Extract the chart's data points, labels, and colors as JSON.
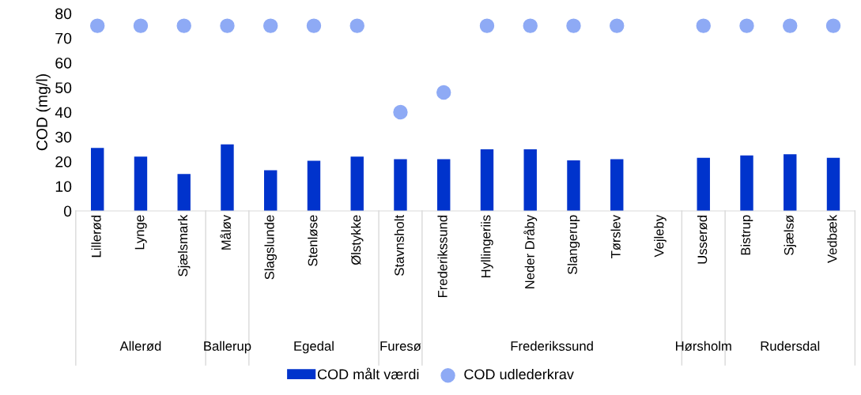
{
  "chart_data": {
    "type": "bar",
    "ylabel": "COD (mg/l)",
    "categories": [
      "Lillerød",
      "Lynge",
      "Sjælsmark",
      "Måløv",
      "Slagslunde",
      "Stenløse",
      "Ølstykke",
      "Stavnsholt",
      "Frederikssund",
      "Hyllingeriis",
      "Neder Dråby",
      "Slangerup",
      "Tørslev",
      "Vejleby",
      "Usserød",
      "Bistrup",
      "Sjælsø",
      "Vedbæk"
    ],
    "series": [
      {
        "name": "COD målt værdi",
        "color": "#0033cc",
        "values": [
          25.5,
          22,
          15,
          27,
          16.5,
          20.3,
          22,
          21,
          21,
          25,
          25,
          20.5,
          21,
          null,
          21.5,
          22.5,
          23,
          21.5
        ]
      },
      {
        "name": "COD udlederkrav",
        "type": "scatter",
        "color": "#8eaaf5",
        "values": [
          75,
          75,
          75,
          75,
          75,
          75,
          75,
          40,
          48,
          75,
          75,
          75,
          75,
          null,
          75,
          75,
          75,
          75
        ]
      }
    ],
    "ylim": [
      0,
      80
    ],
    "yticks": [
      0,
      10,
      20,
      30,
      40,
      50,
      60,
      70,
      80
    ],
    "marker": "circle",
    "grid": false,
    "legend": "bottom",
    "annotations": [
      "Allerød",
      "Ballerup",
      "Egedal",
      "Furesø",
      "Frederikssund",
      "Hørsholm",
      "Rudersdal"
    ]
  }
}
